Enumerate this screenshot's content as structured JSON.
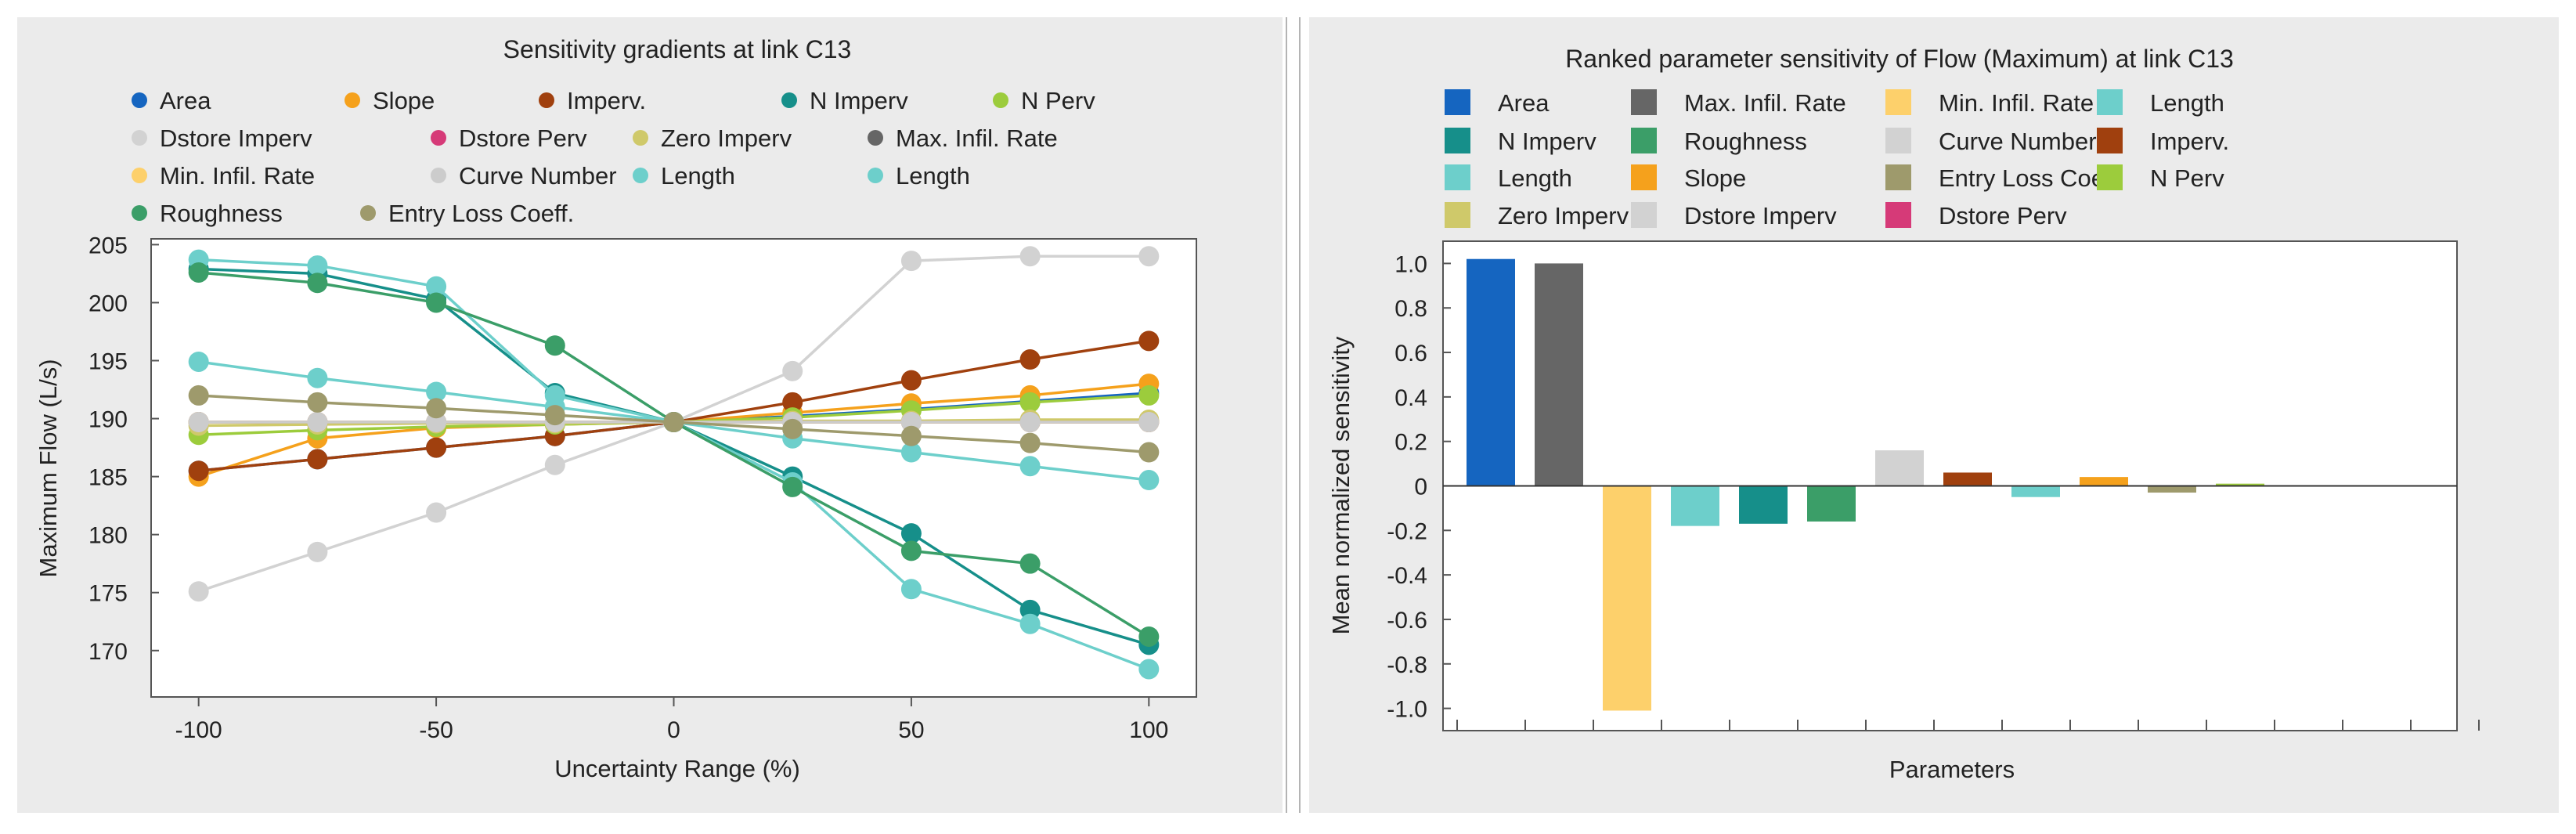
{
  "colors": {
    "panel_bg": "#ebebeb",
    "plot_bg": "#ffffff",
    "axis": "#555555",
    "divider": "#b4b4b4",
    "zero_line": "#333333"
  },
  "chart_data": [
    {
      "type": "line",
      "title": "Sensitivity gradients at link C13",
      "xlabel": "Uncertainty Range (%)",
      "ylabel": "Maximum Flow (L/s)",
      "xlim": [
        -110,
        110
      ],
      "ylim": [
        166,
        205.5
      ],
      "xticks": [
        -100,
        -50,
        0,
        50,
        100
      ],
      "yticks": [
        170,
        175,
        180,
        185,
        190,
        195,
        200,
        205
      ],
      "grid": false,
      "legend_position": "top",
      "x": [
        -100,
        -75,
        -50,
        -25,
        0,
        25,
        50,
        75,
        100
      ],
      "series": [
        {
          "name": "Area",
          "color": "#1565c0",
          "values": [
            185.5,
            186.5,
            187.5,
            188.5,
            189.7,
            190.2,
            190.8,
            191.5,
            192.2
          ]
        },
        {
          "name": "Slope",
          "color": "#f5a11c",
          "values": [
            185.0,
            188.3,
            189.2,
            189.5,
            189.7,
            190.5,
            191.3,
            192.0,
            193.0
          ]
        },
        {
          "name": "Imperv.",
          "color": "#a0400e",
          "values": [
            185.5,
            186.5,
            187.5,
            188.5,
            189.7,
            191.4,
            193.3,
            195.1,
            196.7
          ]
        },
        {
          "name": "N Imperv",
          "color": "#168f8a",
          "values": [
            202.9,
            202.5,
            200.3,
            192.2,
            189.7,
            185.0,
            180.1,
            173.5,
            170.5
          ]
        },
        {
          "name": "N Perv",
          "color": "#9ccc3c",
          "values": [
            188.6,
            189.0,
            189.3,
            189.5,
            189.7,
            190.1,
            190.7,
            191.4,
            192.0
          ]
        },
        {
          "name": "Dstore Imperv",
          "color": "#d2d2d2",
          "values": [
            175.1,
            178.5,
            181.9,
            186.0,
            189.7,
            194.1,
            203.6,
            204.0,
            204.0
          ]
        },
        {
          "name": "Dstore Perv",
          "color": "#d63a78",
          "values": [
            189.7,
            189.7,
            189.7,
            189.7,
            189.7,
            189.7,
            189.7,
            189.7,
            189.7
          ]
        },
        {
          "name": "Zero Imperv",
          "color": "#cfc96a",
          "values": [
            189.4,
            189.5,
            189.6,
            189.6,
            189.7,
            189.8,
            189.8,
            189.9,
            189.9
          ]
        },
        {
          "name": "Max. Infil. Rate",
          "color": "#666666",
          "values": [
            189.7,
            189.7,
            189.7,
            189.7,
            189.7,
            189.7,
            189.7,
            189.7,
            189.7
          ]
        },
        {
          "name": "Min. Infil. Rate",
          "color": "#fdd06b",
          "values": [
            189.7,
            189.7,
            189.7,
            189.7,
            189.7,
            189.7,
            189.7,
            189.7,
            189.7
          ]
        },
        {
          "name": "Curve Number",
          "color": "#cccccc",
          "values": [
            189.7,
            189.7,
            189.7,
            189.7,
            189.7,
            189.7,
            189.7,
            189.7,
            189.7
          ]
        },
        {
          "name": "Length",
          "color": "#6dcfcb",
          "values": [
            194.9,
            193.5,
            192.3,
            191.0,
            189.7,
            188.3,
            187.1,
            185.9,
            184.7
          ]
        },
        {
          "name": "Length",
          "color": "#6dcfcb",
          "values": [
            203.7,
            203.2,
            201.4,
            192.0,
            189.7,
            184.5,
            175.3,
            172.3,
            168.4
          ]
        },
        {
          "name": "Roughness",
          "color": "#3b9e68",
          "values": [
            202.6,
            201.7,
            200.0,
            196.3,
            189.7,
            184.1,
            178.6,
            177.5,
            171.2
          ]
        },
        {
          "name": "Entry Loss Coeff.",
          "color": "#9e9a6c",
          "values": [
            192.0,
            191.4,
            190.9,
            190.3,
            189.7,
            189.1,
            188.5,
            187.9,
            187.1
          ]
        }
      ]
    },
    {
      "type": "bar",
      "title": "Ranked parameter sensitivity of Flow (Maximum) at link C13",
      "xlabel": "Parameters",
      "ylabel": "Mean normalized sensitivity",
      "ylim": [
        -1.1,
        1.1
      ],
      "yticks": [
        -1.0,
        -0.8,
        -0.6,
        -0.4,
        -0.2,
        0,
        0.2,
        0.4,
        0.6,
        0.8,
        1.0
      ],
      "ytick_labels": [
        "-1.0",
        "-0.8",
        "-0.6",
        "-0.4",
        "-0.2",
        "0",
        "0.2",
        "0.4",
        "0.6",
        "0.8",
        "1.0"
      ],
      "grid": false,
      "legend_position": "top",
      "categories": [
        "Area",
        "Max. Infil. Rate",
        "Min. Infil. Rate",
        "Length",
        "N Imperv",
        "Roughness",
        "Curve Number",
        "Imperv.",
        "Length",
        "Slope",
        "Entry Loss Coeff.",
        "N Perv",
        "Zero Imperv",
        "Dstore Imperv",
        "Dstore Perv"
      ],
      "colors": [
        "#1565c0",
        "#666666",
        "#fdd06b",
        "#6dcfcb",
        "#168f8a",
        "#3b9e68",
        "#d2d2d2",
        "#a0400e",
        "#6dcfcb",
        "#f5a11c",
        "#9e9a6c",
        "#9ccc3c",
        "#cfc96a",
        "#d2d2d2",
        "#d63a78"
      ],
      "values": [
        1.02,
        1.0,
        -1.01,
        -0.18,
        -0.17,
        -0.16,
        0.16,
        0.06,
        -0.05,
        0.04,
        -0.03,
        0.01,
        0.0,
        0.0,
        0.0
      ]
    }
  ]
}
